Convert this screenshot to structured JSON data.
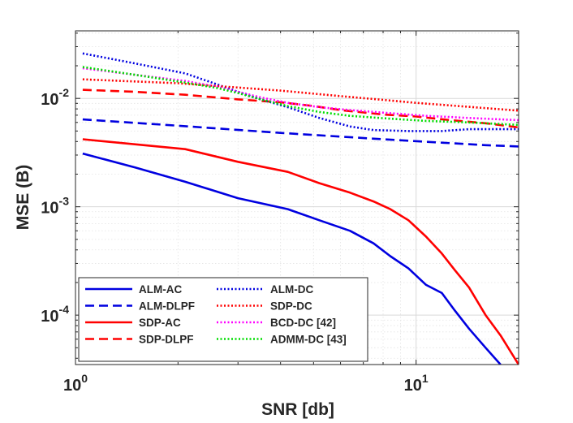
{
  "chart_data": {
    "type": "line",
    "title": "",
    "xlabel": "SNR [db]",
    "ylabel": "MSE (B)",
    "xscale": "log",
    "yscale": "log",
    "xlim": [
      1,
      20
    ],
    "ylim": [
      3.5e-05,
      0.042
    ],
    "grid": true,
    "legend_position": "bottom-left",
    "x_ticks": [
      {
        "value": 1,
        "base": "10",
        "exp": "0"
      },
      {
        "value": 10,
        "base": "10",
        "exp": "1"
      }
    ],
    "y_ticks": [
      {
        "value": 0.0001,
        "base": "10",
        "exp": "-4"
      },
      {
        "value": 0.001,
        "base": "10",
        "exp": "-3"
      },
      {
        "value": 0.01,
        "base": "10",
        "exp": "-2"
      }
    ],
    "series": [
      {
        "name": "ALM-AC",
        "color": "#0000e0",
        "style": "solid",
        "x": [
          1.05,
          1.5,
          2.1,
          3.0,
          4.2,
          5.2,
          6.4,
          7.5,
          8.4,
          9.5,
          10.7,
          11.9,
          13.0,
          14.3,
          16.0,
          17.7
        ],
        "y": [
          0.0031,
          0.0023,
          0.0017,
          0.0012,
          0.00095,
          0.00075,
          0.0006,
          0.00046,
          0.00035,
          0.00027,
          0.00019,
          0.00016,
          0.00011,
          7.5e-05,
          5e-05,
          3.5e-05
        ]
      },
      {
        "name": "ALM-DLPF",
        "color": "#0000e0",
        "style": "dashed",
        "x": [
          1.05,
          2.0,
          4.0,
          8.0,
          12.0,
          16.0,
          20.0
        ],
        "y": [
          0.0064,
          0.0056,
          0.0048,
          0.0042,
          0.0039,
          0.0037,
          0.0036
        ]
      },
      {
        "name": "SDP-AC",
        "color": "#ff0000",
        "style": "solid",
        "x": [
          1.05,
          2.1,
          3.0,
          4.2,
          5.2,
          6.4,
          7.5,
          8.4,
          9.5,
          10.7,
          11.9,
          13.0,
          14.3,
          16.0,
          17.7,
          20.0
        ],
        "y": [
          0.0042,
          0.0034,
          0.0026,
          0.0021,
          0.00165,
          0.00135,
          0.00112,
          0.00095,
          0.00075,
          0.00053,
          0.00037,
          0.00026,
          0.00018,
          0.0001,
          6.5e-05,
          3.5e-05
        ]
      },
      {
        "name": "SDP-DLPF",
        "color": "#ff0000",
        "style": "dashed",
        "x": [
          1.05,
          1.5,
          2.1,
          3.0,
          4.0,
          5.0,
          6.0,
          8.0,
          10.0,
          12.0,
          16.0,
          20.0
        ],
        "y": [
          0.012,
          0.0115,
          0.0108,
          0.0098,
          0.0092,
          0.0085,
          0.0078,
          0.0071,
          0.0068,
          0.0064,
          0.0059,
          0.0054
        ]
      },
      {
        "name": "ALM-DC",
        "color": "#0000e0",
        "style": "dotted",
        "x": [
          1.05,
          1.5,
          2.1,
          2.6,
          3.0,
          3.5,
          4.2,
          5.2,
          6.4,
          7.5,
          9.5,
          11.9,
          14.3,
          17.7,
          20.0
        ],
        "y": [
          0.026,
          0.021,
          0.017,
          0.0135,
          0.0115,
          0.0098,
          0.0083,
          0.0066,
          0.0055,
          0.0051,
          0.005,
          0.005,
          0.0052,
          0.0052,
          0.0052
        ]
      },
      {
        "name": "SDP-DC",
        "color": "#ff0000",
        "style": "dotted",
        "x": [
          1.05,
          2.0,
          4.0,
          6.0,
          8.0,
          10.0,
          14.0,
          20.0
        ],
        "y": [
          0.015,
          0.0138,
          0.0118,
          0.0105,
          0.0097,
          0.0091,
          0.0084,
          0.0077
        ]
      },
      {
        "name": "BCD-DC [42]",
        "color": "#ff00ff",
        "style": "dotted",
        "x": [
          1.05,
          1.5,
          2.1,
          2.6,
          3.0,
          3.5,
          4.2,
          5.2,
          6.4,
          8.4,
          10.7,
          14.3,
          20.0
        ],
        "y": [
          0.019,
          0.0165,
          0.0145,
          0.0128,
          0.0115,
          0.0102,
          0.0091,
          0.0083,
          0.0078,
          0.0073,
          0.0069,
          0.0066,
          0.0063
        ]
      },
      {
        "name": "ADMM-DC  [43]",
        "color": "#00dd00",
        "style": "dotted",
        "x": [
          1.05,
          1.5,
          2.1,
          2.6,
          3.0,
          3.5,
          4.2,
          5.2,
          6.4,
          8.4,
          10.7,
          14.3,
          17.7,
          20.0
        ],
        "y": [
          0.0195,
          0.0165,
          0.014,
          0.0125,
          0.0112,
          0.0098,
          0.0085,
          0.0075,
          0.0069,
          0.0065,
          0.0062,
          0.006,
          0.0058,
          0.0057
        ]
      }
    ]
  }
}
